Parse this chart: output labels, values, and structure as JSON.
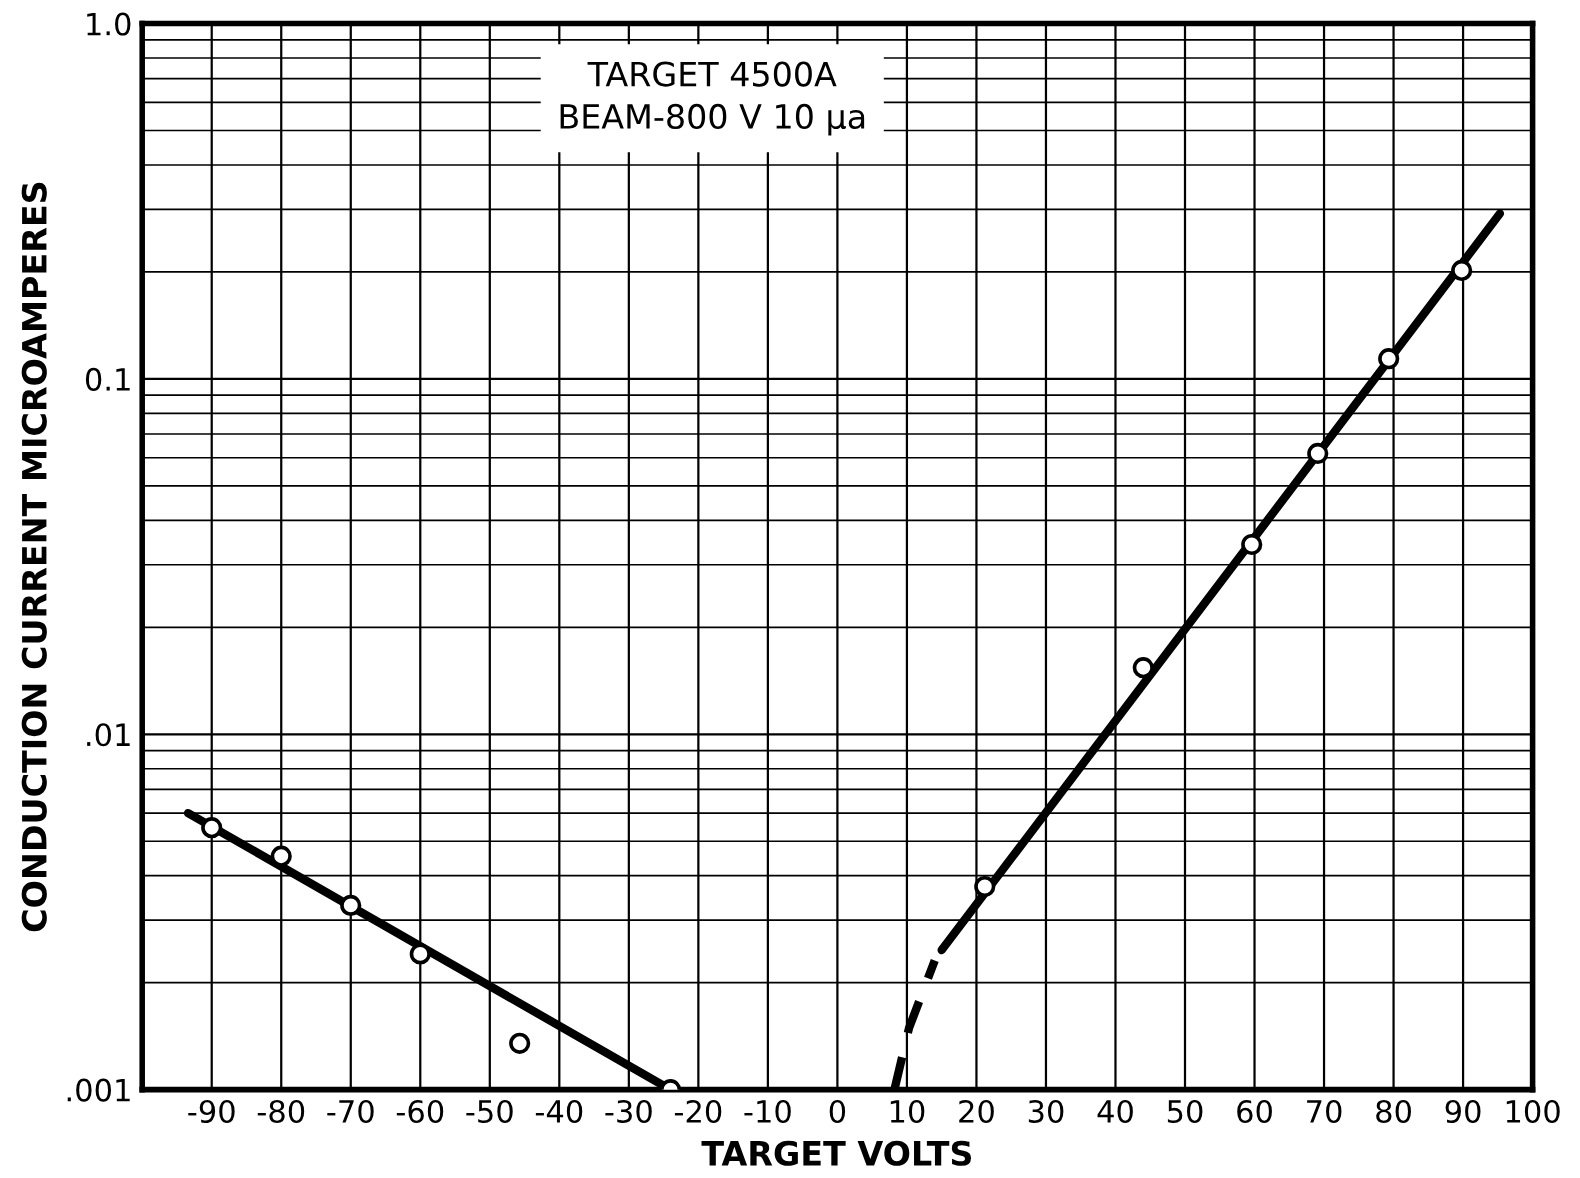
{
  "chart_data": {
    "type": "scatter",
    "xlabel": "TARGET VOLTS",
    "ylabel": "CONDUCTION CURRENT MICROAMPERES",
    "annotations": [
      "TARGET 4500A\nBEAM-800 V 10 μa"
    ],
    "log": "y",
    "grid": true,
    "xlim": [
      -100,
      100
    ],
    "xticks": [
      -90,
      -80,
      -70,
      -60,
      -50,
      -40,
      -30,
      -20,
      -10,
      0,
      10,
      20,
      30,
      40,
      50,
      60,
      70,
      80,
      90,
      100
    ],
    "ylim": [
      0.001,
      1
    ],
    "yticks": [
      {
        "value": 0.001,
        "label": ".001"
      },
      {
        "value": 0.01,
        "label": ".01"
      },
      {
        "value": 0.1,
        "label": "0.1"
      },
      {
        "value": 1,
        "label": "1.0"
      }
    ],
    "series": [
      {
        "color": "#000000",
        "marker": "circle",
        "x": [
          -90,
          -80,
          -70,
          -60,
          -45.7,
          -24,
          21.2,
          44,
          59.6,
          69.1,
          79.3,
          89.8
        ],
        "values": [
          0.00546,
          0.00454,
          0.0033,
          0.00241,
          0.00135,
          0.001,
          0.00373,
          0.0154,
          0.0342,
          0.0617,
          0.114,
          0.202
        ]
      },
      {
        "type": "line",
        "color": "#000000",
        "marker": "none",
        "line_style": "solid",
        "x": [
          -93.4,
          -24
        ],
        "values": [
          0.006,
          0.001
        ]
      },
      {
        "type": "line",
        "color": "#000000",
        "marker": "none",
        "line_style": "solid",
        "x": [
          15,
          95.3
        ],
        "values": [
          0.00247,
          0.292
        ]
      },
      {
        "type": "line",
        "color": "#000000",
        "marker": "none",
        "line_style": "dashed",
        "x": [
          8.2,
          10.3,
          14
        ],
        "values": [
          0.001,
          0.00149,
          0.00231
        ]
      }
    ]
  }
}
